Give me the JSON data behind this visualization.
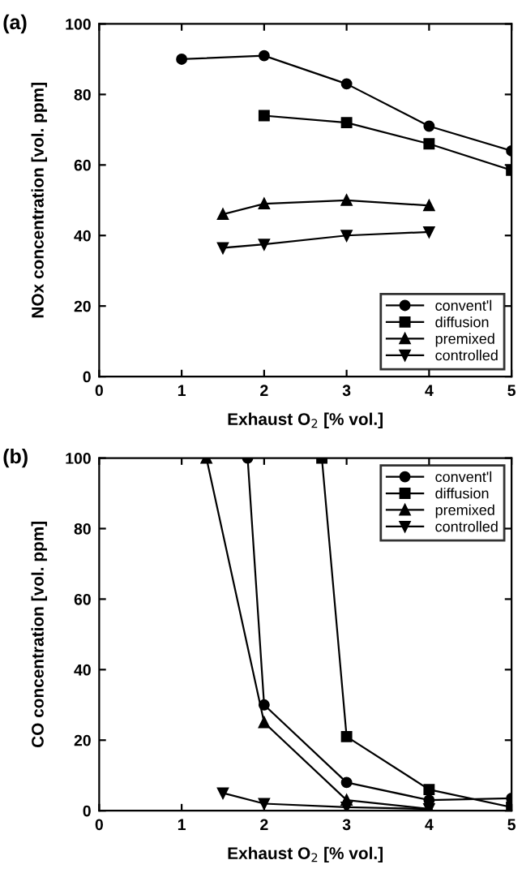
{
  "chart_data": [
    {
      "type": "line",
      "title": "(a)",
      "xlabel": "Exhaust O$_{2}$ [% vol.]",
      "ylabel": "NOx concentration [vol. ppm]",
      "xlim": [
        0,
        5
      ],
      "ylim": [
        0,
        100
      ],
      "xticks": [
        0,
        1,
        2,
        3,
        4,
        5
      ],
      "yticks": [
        0,
        20,
        40,
        60,
        80,
        100
      ],
      "grid": false,
      "legend": "bottom right",
      "line_style": "solid",
      "series": [
        {
          "name": "convent'l",
          "color": "#000000",
          "marker": "circle",
          "x": [
            1,
            2,
            3,
            4,
            5
          ],
          "values": [
            90,
            91,
            83,
            71,
            64
          ]
        },
        {
          "name": "diffusion",
          "color": "#000000",
          "marker": "square",
          "x": [
            2,
            3,
            4,
            5
          ],
          "values": [
            74,
            72,
            66,
            58.5
          ]
        },
        {
          "name": "premixed",
          "color": "#000000",
          "marker": "triangle",
          "x": [
            1.5,
            2,
            3,
            4
          ],
          "values": [
            46,
            49,
            50,
            48.5
          ]
        },
        {
          "name": "controlled",
          "color": "#000000",
          "marker": "triangle_down",
          "x": [
            1.5,
            2,
            3,
            4
          ],
          "values": [
            36.5,
            37.5,
            40,
            41
          ]
        }
      ]
    },
    {
      "type": "line",
      "title": "(b)",
      "xlabel": "Exhaust O$_{2}$ [% vol.]",
      "ylabel": "CO concentration [vol. ppm]",
      "xlim": [
        0,
        5
      ],
      "ylim": [
        0,
        100
      ],
      "xticks": [
        0,
        1,
        2,
        3,
        4,
        5
      ],
      "yticks": [
        0,
        20,
        40,
        60,
        80,
        100
      ],
      "grid": false,
      "legend": "top right",
      "line_style": "solid",
      "series": [
        {
          "name": "convent'l",
          "color": "#000000",
          "marker": "circle",
          "x": [
            1.8,
            2,
            3,
            4,
            5
          ],
          "values": [
            100,
            30,
            8,
            3,
            3.5
          ]
        },
        {
          "name": "diffusion",
          "color": "#000000",
          "marker": "square",
          "x": [
            2.7,
            3,
            4,
            5
          ],
          "values": [
            100,
            21,
            6,
            1
          ]
        },
        {
          "name": "premixed",
          "color": "#000000",
          "marker": "triangle",
          "x": [
            1.3,
            2,
            3,
            4
          ],
          "values": [
            100,
            25,
            3,
            0.5
          ]
        },
        {
          "name": "controlled",
          "color": "#000000",
          "marker": "triangle_down",
          "x": [
            1.5,
            2,
            3,
            4
          ],
          "values": [
            5,
            2,
            1,
            0.5
          ]
        }
      ]
    }
  ]
}
